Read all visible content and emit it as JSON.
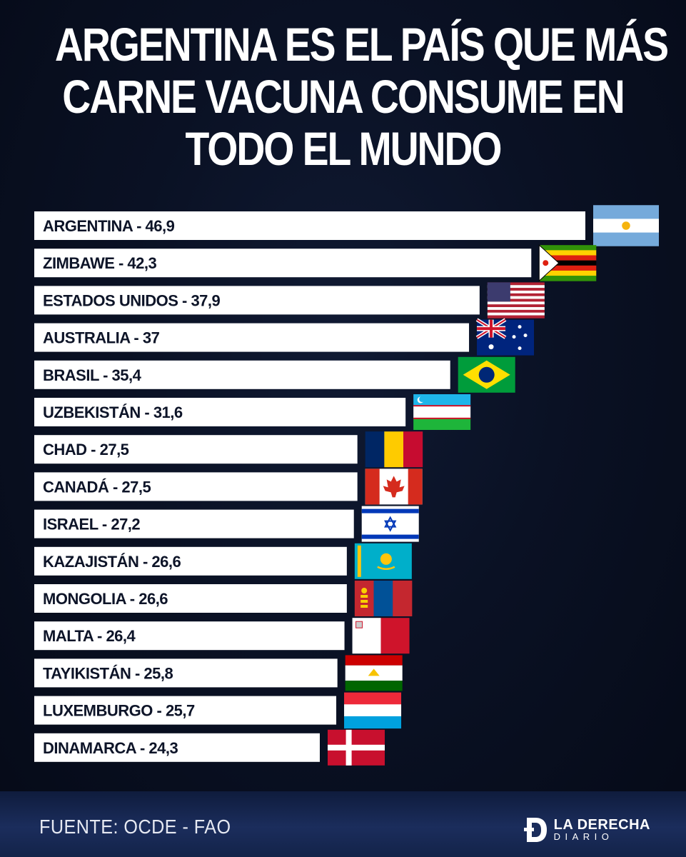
{
  "title_lines": [
    "ARGENTINA ES EL PAÍS QUE MÁS",
    "CARNE VACUNA CONSUME EN",
    "TODO EL MUNDO"
  ],
  "source": "FUENTE: OCDE - FAO",
  "brand": {
    "line1": "LA DERECHA",
    "line2": "DIARIO"
  },
  "colors": {
    "background": "#0a1124",
    "bar": "#ffffff",
    "label": "#0d1428",
    "footer": "#1b2d5c"
  },
  "chart_data": {
    "type": "bar",
    "orientation": "horizontal",
    "title": "ARGENTINA ES EL PAÍS QUE MÁS CARNE VACUNA CONSUME EN TODO EL MUNDO",
    "categories": [
      "ARGENTINA",
      "ZIMBAWE",
      "ESTADOS UNIDOS",
      "AUSTRALIA",
      "BRASIL",
      "UZBEKISTÁN",
      "CHAD",
      "CANADÁ",
      "ISRAEL",
      "KAZAJISTÁN",
      "MONGOLIA",
      "MALTA",
      "TAYIKISTÁN",
      "LUXEMBURGO",
      "DINAMARCA"
    ],
    "labels": [
      "ARGENTINA - 46,9",
      "ZIMBAWE - 42,3",
      "ESTADOS UNIDOS - 37,9",
      "AUSTRALIA - 37",
      "BRASIL - 35,4",
      "UZBEKISTÁN - 31,6",
      "CHAD - 27,5",
      "CANADÁ - 27,5",
      "ISRAEL - 27,2",
      "KAZAJISTÁN - 26,6",
      "MONGOLIA - 26,6",
      "MALTA - 26,4",
      "TAYIKISTÁN - 25,8",
      "LUXEMBURGO - 25,7",
      "DINAMARCA - 24,3"
    ],
    "values": [
      46.9,
      42.3,
      37.9,
      37,
      35.4,
      31.6,
      27.5,
      27.5,
      27.2,
      26.6,
      26.6,
      26.4,
      25.8,
      25.7,
      24.3
    ],
    "flags": [
      "argentina-flag-icon",
      "zimbabwe-flag-icon",
      "usa-flag-icon",
      "australia-flag-icon",
      "brazil-flag-icon",
      "uzbekistan-flag-icon",
      "chad-flag-icon",
      "canada-flag-icon",
      "israel-flag-icon",
      "kazakhstan-flag-icon",
      "mongolia-flag-icon",
      "malta-flag-icon",
      "tajikistan-flag-icon",
      "luxembourg-flag-icon",
      "denmark-flag-icon"
    ],
    "xlim": [
      0,
      46.9
    ],
    "grid": false,
    "legend": "none"
  }
}
